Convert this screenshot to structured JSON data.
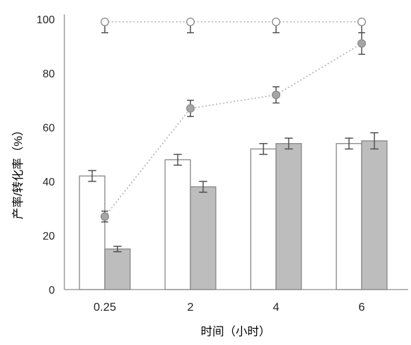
{
  "page": {
    "background_color": "#ffffff"
  },
  "chart_data": {
    "type": "bar",
    "subtype": "grouped-bars-with-dotted-line-overlay-and-error-bars",
    "title": "",
    "xlabel": "时间（小时）",
    "ylabel": "产率/转化率（%）",
    "categories": [
      "0.25",
      "2",
      "4",
      "6"
    ],
    "x_values": [
      0.25,
      2,
      4,
      6
    ],
    "ylim": [
      0,
      100
    ],
    "yticks": [
      0,
      20,
      40,
      60,
      80,
      100
    ],
    "grid": false,
    "legend": "none",
    "series": [
      {
        "name": "white-bar-series",
        "type": "bar",
        "values": [
          42,
          48,
          52,
          54
        ],
        "errors": [
          2,
          2,
          2,
          2
        ],
        "fill": "#ffffff",
        "stroke": "#8c8c8c"
      },
      {
        "name": "gray-bar-series",
        "type": "bar",
        "values": [
          15,
          38,
          54,
          55
        ],
        "errors": [
          1,
          2,
          2,
          3
        ],
        "fill": "#bdbdbd",
        "stroke": "#8c8c8c"
      },
      {
        "name": "filled-circle-dotted-line-series",
        "type": "line",
        "marker": "filled-circle",
        "line_style": "dotted",
        "values": [
          27,
          67,
          72,
          91
        ],
        "errors": [
          2,
          3,
          3,
          4
        ],
        "line_color": "#b3b3b3",
        "marker_fill": "#a6a6a6",
        "marker_stroke": "#8c8c8c"
      },
      {
        "name": "open-circle-dotted-line-series",
        "type": "line",
        "marker": "open-circle",
        "line_style": "dotted",
        "values": [
          99,
          99,
          99,
          99
        ],
        "errors_up": [
          0,
          0,
          0,
          0
        ],
        "errors_down": [
          4,
          4,
          4,
          4
        ],
        "line_color": "#b3b3b3",
        "marker_fill": "#ffffff",
        "marker_stroke": "#8c8c8c"
      }
    ],
    "style": {
      "error_bar_color": "#4d4d4d",
      "axis_color": "#8c8c8c",
      "text_color": "#262626"
    }
  }
}
